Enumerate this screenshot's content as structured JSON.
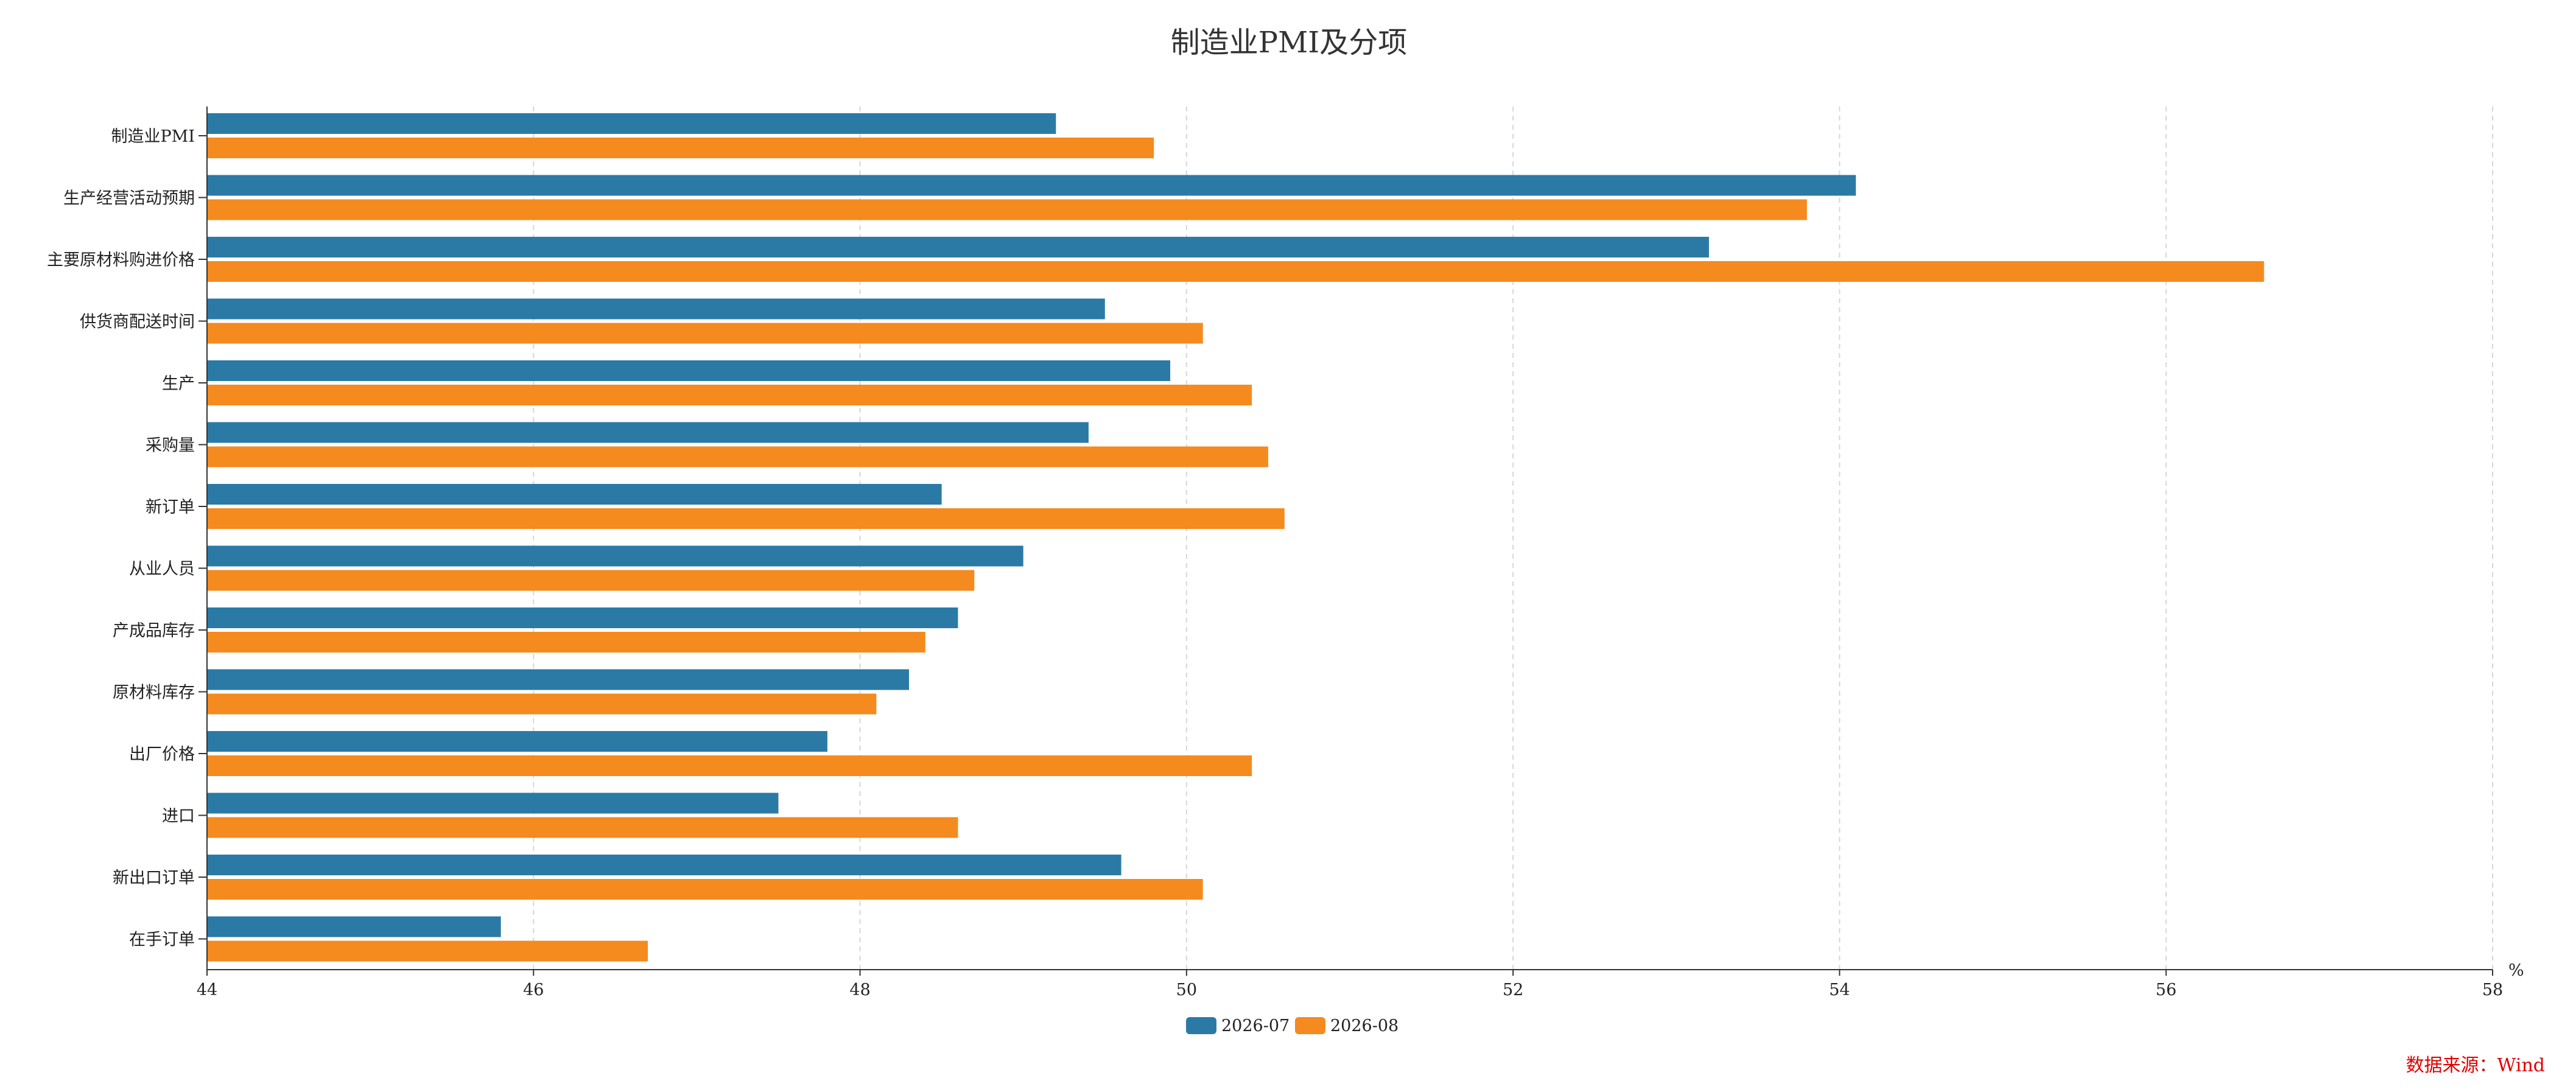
{
  "chart_data": {
    "type": "bar",
    "orientation": "horizontal",
    "title": "制造业PMI及分项",
    "categories": [
      "制造业PMI",
      "生产经营活动预期",
      "主要原材料购进价格",
      "供货商配送时间",
      "生产",
      "采购量",
      "新订单",
      "从业人员",
      "产成品库存",
      "原材料库存",
      "出厂价格",
      "进口",
      "新出口订单",
      "在手订单"
    ],
    "series": [
      {
        "name": "2026-07",
        "color": "#2b7aa6",
        "values": [
          49.2,
          54.1,
          53.2,
          49.5,
          49.9,
          49.4,
          48.5,
          49.0,
          48.6,
          48.3,
          47.8,
          47.5,
          49.6,
          45.8
        ]
      },
      {
        "name": "2026-08",
        "color": "#f58a1f",
        "values": [
          49.8,
          53.8,
          56.6,
          50.1,
          50.4,
          50.5,
          50.6,
          48.7,
          48.4,
          48.1,
          50.4,
          48.6,
          50.1,
          46.7
        ]
      }
    ],
    "xlim": [
      44,
      58
    ],
    "xticks": [
      "44",
      "46",
      "48",
      "50",
      "52",
      "54",
      "56",
      "58"
    ],
    "xunit": "%",
    "grid": "vertical dashed",
    "legend_position": "bottom-center"
  },
  "source_note": "数据来源：Wind"
}
